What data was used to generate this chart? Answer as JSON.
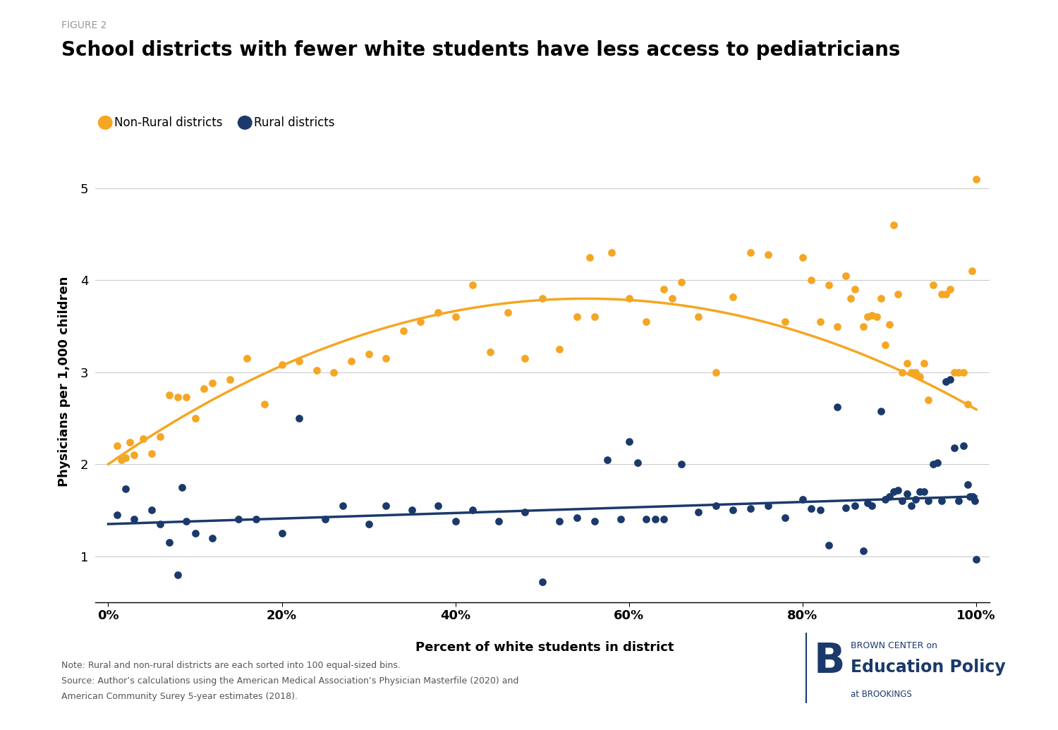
{
  "figure_label": "FIGURE 2",
  "title": "School districts with fewer white students have less access to pediatricians",
  "xlabel": "Percent of white students in district",
  "ylabel": "Physicians per 1,000 children",
  "note_line1": "Note: Rural and non-rural districts are each sorted into 100 equal-sized bins.",
  "note_line2": "Source: Author’s calculations using the American Medical Association’s Physician Masterfile (2020) and",
  "note_line3": "American Community Surey 5-year estimates (2018).",
  "ylim": [
    0.5,
    5.3
  ],
  "xlim": [
    -0.015,
    1.015
  ],
  "yticks": [
    1.0,
    2.0,
    3.0,
    4.0,
    5.0
  ],
  "xticks": [
    0.0,
    0.2,
    0.4,
    0.6,
    0.8,
    1.0
  ],
  "xtick_labels": [
    "0%",
    "20%",
    "40%",
    "60%",
    "80%",
    "100%"
  ],
  "orange_color": "#F5A623",
  "blue_color": "#1B3A6B",
  "legend_orange_label": "Non-Rural districts",
  "legend_blue_label": "Rural districts",
  "nr_scatter_x": [
    0.01,
    0.015,
    0.02,
    0.025,
    0.03,
    0.04,
    0.05,
    0.06,
    0.07,
    0.08,
    0.09,
    0.1,
    0.11,
    0.12,
    0.14,
    0.16,
    0.18,
    0.2,
    0.22,
    0.24,
    0.26,
    0.28,
    0.3,
    0.32,
    0.34,
    0.36,
    0.38,
    0.4,
    0.42,
    0.44,
    0.46,
    0.48,
    0.5,
    0.52,
    0.54,
    0.555,
    0.56,
    0.58,
    0.6,
    0.62,
    0.64,
    0.65,
    0.66,
    0.68,
    0.7,
    0.72,
    0.74,
    0.76,
    0.78,
    0.8,
    0.81,
    0.82,
    0.83,
    0.84,
    0.85,
    0.855,
    0.86,
    0.87,
    0.875,
    0.88,
    0.885,
    0.89,
    0.895,
    0.9,
    0.905,
    0.91,
    0.915,
    0.92,
    0.925,
    0.93,
    0.935,
    0.94,
    0.945,
    0.95,
    0.96,
    0.965,
    0.97,
    0.975,
    0.98,
    0.985,
    0.99,
    0.995,
    1.0
  ],
  "nr_scatter_y": [
    2.2,
    2.05,
    2.07,
    2.24,
    2.1,
    2.28,
    2.12,
    2.3,
    2.75,
    2.73,
    2.73,
    2.5,
    2.82,
    2.88,
    2.92,
    3.15,
    2.65,
    3.08,
    3.12,
    3.02,
    3.0,
    3.12,
    3.2,
    3.15,
    3.45,
    3.55,
    3.65,
    3.6,
    3.95,
    3.22,
    3.65,
    3.15,
    3.8,
    3.25,
    3.6,
    4.25,
    3.6,
    4.3,
    3.8,
    3.55,
    3.9,
    3.8,
    3.98,
    3.6,
    3.0,
    3.82,
    4.3,
    4.28,
    3.55,
    4.25,
    4.0,
    3.55,
    3.95,
    3.5,
    4.05,
    3.8,
    3.9,
    3.5,
    3.6,
    3.62,
    3.6,
    3.8,
    3.3,
    3.52,
    4.6,
    3.85,
    3.0,
    3.1,
    3.0,
    3.0,
    2.95,
    3.1,
    2.7,
    3.95,
    3.85,
    3.85,
    3.9,
    3.0,
    3.0,
    3.0,
    2.65,
    4.1,
    5.1
  ],
  "ru_scatter_x": [
    0.01,
    0.02,
    0.03,
    0.05,
    0.06,
    0.07,
    0.08,
    0.085,
    0.09,
    0.1,
    0.12,
    0.15,
    0.17,
    0.2,
    0.22,
    0.25,
    0.27,
    0.3,
    0.32,
    0.35,
    0.38,
    0.4,
    0.42,
    0.45,
    0.48,
    0.5,
    0.52,
    0.54,
    0.56,
    0.575,
    0.59,
    0.6,
    0.61,
    0.62,
    0.63,
    0.64,
    0.66,
    0.68,
    0.7,
    0.72,
    0.74,
    0.76,
    0.78,
    0.8,
    0.81,
    0.82,
    0.83,
    0.84,
    0.85,
    0.86,
    0.87,
    0.875,
    0.88,
    0.89,
    0.895,
    0.9,
    0.905,
    0.91,
    0.915,
    0.92,
    0.925,
    0.93,
    0.935,
    0.94,
    0.945,
    0.95,
    0.955,
    0.96,
    0.965,
    0.97,
    0.975,
    0.98,
    0.985,
    0.99,
    0.993,
    0.996,
    0.998,
    1.0
  ],
  "ru_scatter_y": [
    1.45,
    1.73,
    1.4,
    1.5,
    1.35,
    1.15,
    0.8,
    1.75,
    1.38,
    1.25,
    1.2,
    1.4,
    1.4,
    1.25,
    2.5,
    1.4,
    1.55,
    1.35,
    1.55,
    1.5,
    1.55,
    1.38,
    1.5,
    1.38,
    1.48,
    0.72,
    1.38,
    1.42,
    1.38,
    2.05,
    1.4,
    2.25,
    2.02,
    1.4,
    1.4,
    1.4,
    2.0,
    1.48,
    1.55,
    1.5,
    1.52,
    1.55,
    1.42,
    1.62,
    1.52,
    1.5,
    1.12,
    2.62,
    1.53,
    1.55,
    1.06,
    1.58,
    1.55,
    2.58,
    1.62,
    1.65,
    1.7,
    1.72,
    1.6,
    1.68,
    1.55,
    1.62,
    1.7,
    1.7,
    1.6,
    2.0,
    2.02,
    1.6,
    2.9,
    2.92,
    2.18,
    1.6,
    2.2,
    1.78,
    1.65,
    1.65,
    1.6,
    0.97
  ]
}
